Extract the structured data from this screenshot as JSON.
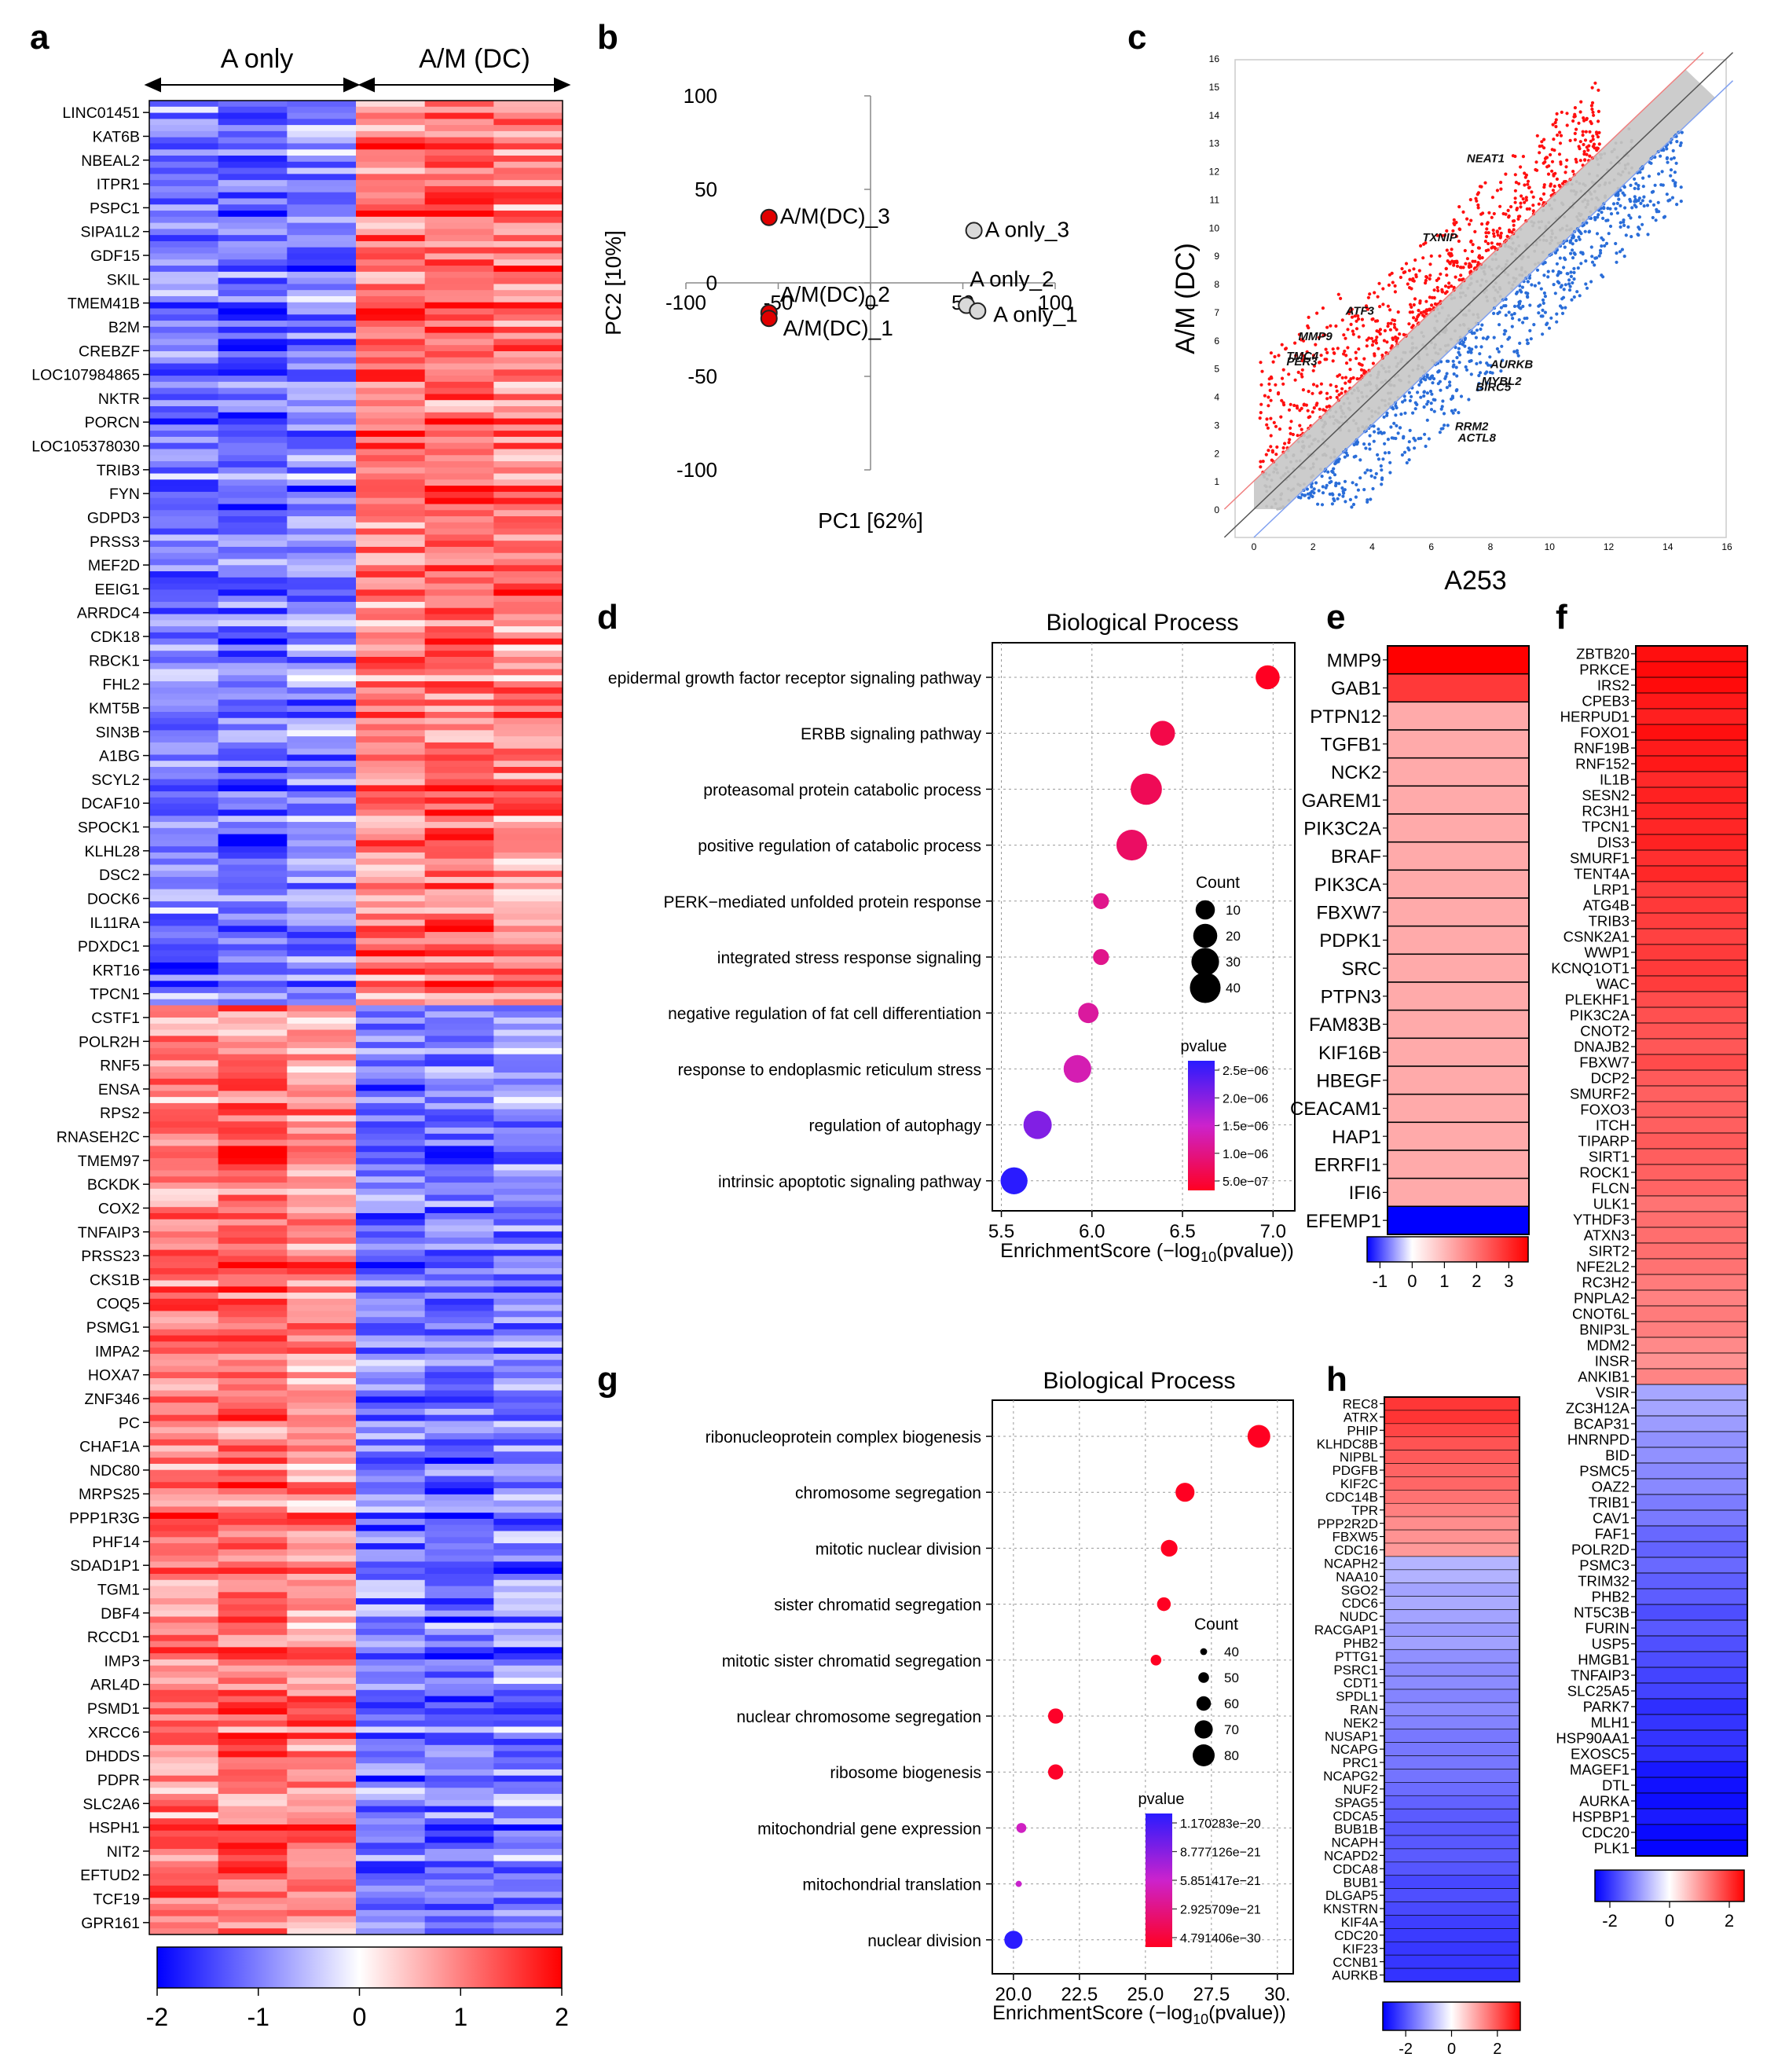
{
  "figure": {
    "panels": [
      "a",
      "b",
      "c",
      "d",
      "e",
      "f",
      "g",
      "h"
    ]
  },
  "chart_data": [
    {
      "panel": "a",
      "type": "heatmap",
      "groups": [
        "A only",
        "A/M (DC)"
      ],
      "genes": [
        "LINC01451",
        "KAT6B",
        "NBEAL2",
        "ITPR1",
        "PSPC1",
        "SIPA1L2",
        "GDF15",
        "SKIL",
        "TMEM41B",
        "B2M",
        "CREBZF",
        "LOC107984865",
        "NKTR",
        "PORCN",
        "LOC105378030",
        "TRIB3",
        "FYN",
        "GDPD3",
        "PRSS3",
        "MEF2D",
        "EEIG1",
        "ARRDC4",
        "CDK18",
        "RBCK1",
        "FHL2",
        "KMT5B",
        "SIN3B",
        "A1BG",
        "SCYL2",
        "DCAF10",
        "SPOCK1",
        "KLHL28",
        "DSC2",
        "DOCK6",
        "IL11RA",
        "PDXDC1",
        "KRT16",
        "TPCN1",
        "CSTF1",
        "POLR2H",
        "RNF5",
        "ENSA",
        "RPS2",
        "RNASEH2C",
        "TMEM97",
        "BCKDK",
        "COX2",
        "TNFAIP3",
        "PRSS23",
        "CKS1B",
        "COQ5",
        "PSMG1",
        "IMPA2",
        "HOXA7",
        "ZNF346",
        "PC",
        "CHAF1A",
        "NDC80",
        "MRPS25",
        "PPP1R3G",
        "PHF14",
        "SDAD1P1",
        "TGM1",
        "DBF4",
        "RCCD1",
        "IMP3",
        "ARL4D",
        "PSMD1",
        "XRCC6",
        "DHDDS",
        "PDPR",
        "SLC2A6",
        "HSPH1",
        "NIT2",
        "EFTUD2",
        "TCF19",
        "GPR161"
      ],
      "up_in_AM_count": 38,
      "colorbar_ticks": [
        "-2",
        "-1",
        "0",
        "1",
        "2"
      ],
      "colorbar_range": [
        -2,
        2
      ]
    },
    {
      "panel": "b",
      "type": "scatter",
      "xlabel": "PC1 [62%]",
      "ylabel": "PC2 [10%]",
      "xlim": [
        -100,
        100
      ],
      "ylim": [
        -100,
        100
      ],
      "xticks": [
        "-100",
        "-50",
        "0",
        "50",
        "100"
      ],
      "yticks": [
        "100",
        "50",
        "0",
        "-50",
        "-100"
      ],
      "points": [
        {
          "label": "A/M(DC)_3",
          "x": -55,
          "y": 35,
          "group": "A/M(DC)"
        },
        {
          "label": "A/M(DC)_2",
          "x": -55,
          "y": -16,
          "group": "A/M(DC)"
        },
        {
          "label": "A/M(DC)_1",
          "x": -55,
          "y": -19,
          "group": "A/M(DC)"
        },
        {
          "label": "A only_3",
          "x": 56,
          "y": 28,
          "group": "A only"
        },
        {
          "label": "A only_2",
          "x": 52,
          "y": -12,
          "group": "A only"
        },
        {
          "label": "A only_1",
          "x": 58,
          "y": -15,
          "group": "A only"
        }
      ]
    },
    {
      "panel": "c",
      "type": "scatter",
      "xlabel": "A253",
      "ylabel": "A/M (DC)",
      "xlim": [
        0,
        16
      ],
      "ylim": [
        0,
        16
      ],
      "xticks": [
        "0",
        "2",
        "4",
        "6",
        "8",
        "10",
        "12",
        "14",
        "16"
      ],
      "yticks": [
        "0",
        "1",
        "2",
        "3",
        "4",
        "5",
        "6",
        "7",
        "8",
        "9",
        "10",
        "11",
        "12",
        "13",
        "14",
        "15",
        "16"
      ],
      "labeled_genes": [
        {
          "gene": "NEAT1",
          "x": 7.2,
          "y": 12.3
        },
        {
          "gene": "TXNIP",
          "x": 5.7,
          "y": 9.5
        },
        {
          "gene": "ATF3",
          "x": 3.1,
          "y": 6.9
        },
        {
          "gene": "MMP9",
          "x": 1.5,
          "y": 6.0
        },
        {
          "gene": "TMC4",
          "x": 1.1,
          "y": 5.3
        },
        {
          "gene": "PER3",
          "x": 1.1,
          "y": 5.1
        },
        {
          "gene": "AURKB",
          "x": 8.0,
          "y": 5.0
        },
        {
          "gene": "MYBL2",
          "x": 7.7,
          "y": 4.4
        },
        {
          "gene": "BIRC5",
          "x": 7.5,
          "y": 4.2
        },
        {
          "gene": "RRM2",
          "x": 6.8,
          "y": 2.8
        },
        {
          "gene": "ACTL8",
          "x": 6.9,
          "y": 2.4
        }
      ]
    },
    {
      "panel": "d",
      "type": "scatter",
      "title": "Biological Process",
      "xlabel": "EnrichmentScore (−log",
      "xlabel_sub": "10",
      "xlabel_end": "(pvalue))",
      "xlim": [
        5.45,
        7.12
      ],
      "xticks": [
        "5.5",
        "6.0",
        "6.5",
        "7.0"
      ],
      "terms": [
        {
          "term": "epidermal growth factor receptor signaling pathway",
          "score": 6.97,
          "count": 20,
          "pvalue": 1e-07
        },
        {
          "term": "ERBB signaling pathway",
          "score": 6.39,
          "count": 22,
          "pvalue": 4e-07
        },
        {
          "term": "proteasomal protein catabolic process",
          "score": 6.3,
          "count": 42,
          "pvalue": 5e-07
        },
        {
          "term": "positive regulation of catabolic process",
          "score": 6.22,
          "count": 40,
          "pvalue": 6e-07
        },
        {
          "term": "PERK−mediated unfolded protein response",
          "score": 6.05,
          "count": 5,
          "pvalue": 9e-07
        },
        {
          "term": "integrated stress response signaling",
          "score": 6.05,
          "count": 5,
          "pvalue": 9e-07
        },
        {
          "term": "negative regulation of fat cell differentiation",
          "score": 5.98,
          "count": 12,
          "pvalue": 1.05e-06
        },
        {
          "term": "response to endoplasmic reticulum stress",
          "score": 5.92,
          "count": 30,
          "pvalue": 1.2e-06
        },
        {
          "term": "regulation of autophagy",
          "score": 5.7,
          "count": 32,
          "pvalue": 2e-06
        },
        {
          "term": "intrinsic apoptotic signaling pathway",
          "score": 5.57,
          "count": 28,
          "pvalue": 2.7e-06
        }
      ],
      "count_legend_title": "Count",
      "count_legend": [
        "10",
        "20",
        "30",
        "40"
      ],
      "pvalue_legend_title": "pvalue",
      "pvalue_legend": [
        "2.5e−06",
        "2.0e−06",
        "1.5e−06",
        "1.0e−06",
        "5.0e−07"
      ]
    },
    {
      "panel": "e",
      "type": "heatmap",
      "genes": [
        "MMP9",
        "GAB1",
        "PTPN12",
        "TGFB1",
        "NCK2",
        "GAREM1",
        "PIK3C2A",
        "BRAF",
        "PIK3CA",
        "FBXW7",
        "PDPK1",
        "SRC",
        "PTPN3",
        "FAM83B",
        "KIF16B",
        "HBEGF",
        "CEACAM1",
        "HAP1",
        "ERRFI1",
        "IFI6",
        "EFEMP1"
      ],
      "values": [
        3.6,
        2.8,
        1.2,
        1.2,
        1.2,
        1.2,
        1.2,
        1.2,
        1.2,
        1.2,
        1.2,
        1.2,
        1.2,
        1.2,
        1.2,
        1.2,
        1.2,
        1.2,
        1.2,
        1.2,
        -1.4
      ],
      "colorbar_ticks": [
        "-1",
        "0",
        "1",
        "2",
        "3"
      ],
      "colorbar_range": [
        -1.4,
        3.6
      ]
    },
    {
      "panel": "f",
      "type": "heatmap",
      "genes": [
        "ZBTB20",
        "PRKCE",
        "IRS2",
        "CPEB3",
        "HERPUD1",
        "FOXO1",
        "RNF19B",
        "RNF152",
        "IL1B",
        "SESN2",
        "RC3H1",
        "TPCN1",
        "DIS3",
        "SMURF1",
        "TENT4A",
        "LRP1",
        "ATG4B",
        "TRIB3",
        "CSNK2A1",
        "WWP1",
        "KCNQ1OT1",
        "WAC",
        "PLEKHF1",
        "PIK3C2A",
        "CNOT2",
        "DNAJB2",
        "FBXW7",
        "DCP2",
        "SMURF2",
        "FOXO3",
        "ITCH",
        "TIPARP",
        "SIRT1",
        "ROCK1",
        "FLCN",
        "ULK1",
        "YTHDF3",
        "ATXN3",
        "SIRT2",
        "NFE2L2",
        "RC3H2",
        "PNPLA2",
        "CNOT6L",
        "BNIP3L",
        "MDM2",
        "INSR",
        "ANKIB1",
        "VSIR",
        "ZC3H12A",
        "BCAP31",
        "HNRNPD",
        "BID",
        "PSMC5",
        "OAZ2",
        "TRIB1",
        "CAV1",
        "FAF1",
        "POLR2D",
        "PSMC3",
        "TRIM32",
        "PHB2",
        "NT5C3B",
        "FURIN",
        "USP5",
        "HMGB1",
        "TNFAIP3",
        "SLC25A5",
        "PARK7",
        "MLH1",
        "HSP90AA1",
        "EXOSC5",
        "MAGEF1",
        "DTL",
        "AURKA",
        "HSPBP1",
        "CDC20",
        "PLK1"
      ],
      "up_count": 47,
      "colorbar_ticks": [
        "-2",
        "0",
        "2"
      ],
      "colorbar_range": [
        -2.5,
        2.5
      ]
    },
    {
      "panel": "g",
      "type": "scatter",
      "title": "Biological Process",
      "xlabel": "EnrichmentScore (−log",
      "xlabel_sub": "10",
      "xlabel_end": "(pvalue))",
      "xlim": [
        19.2,
        30.6
      ],
      "xticks": [
        "20.0",
        "22.5",
        "25.0",
        "27.5",
        "30."
      ],
      "terms": [
        {
          "term": "ribonucleoprotein complex biogenesis",
          "score": 29.3,
          "count": 82,
          "pvalue": 1e-30
        },
        {
          "term": "chromosome segregation",
          "score": 26.5,
          "count": 72,
          "pvalue": 3e-27
        },
        {
          "term": "mitotic nuclear division",
          "score": 25.9,
          "count": 66,
          "pvalue": 1.3e-26
        },
        {
          "term": "sister chromatid segregation",
          "score": 25.7,
          "count": 58,
          "pvalue": 2e-26
        },
        {
          "term": "mitotic sister chromatid segregation",
          "score": 25.4,
          "count": 50,
          "pvalue": 4e-26
        },
        {
          "term": "nuclear chromosome segregation",
          "score": 21.6,
          "count": 62,
          "pvalue": 2.5e-22
        },
        {
          "term": "ribosome biogenesis",
          "score": 21.6,
          "count": 62,
          "pvalue": 2.5e-22
        },
        {
          "term": "mitochondrial gene expression",
          "score": 20.3,
          "count": 48,
          "pvalue": 5.5e-21
        },
        {
          "term": "mitochondrial translation",
          "score": 20.2,
          "count": 38,
          "pvalue": 6e-21
        },
        {
          "term": "nuclear division",
          "score": 20.0,
          "count": 70,
          "pvalue": 1.17e-20
        }
      ],
      "count_legend_title": "Count",
      "count_legend": [
        "40",
        "50",
        "60",
        "70",
        "80"
      ],
      "pvalue_legend_title": "pvalue",
      "pvalue_legend": [
        "1.170283e−20",
        "8.777126e−21",
        "5.851417e−21",
        "2.925709e−21",
        "4.791406e−30"
      ]
    },
    {
      "panel": "h",
      "type": "heatmap",
      "genes": [
        "REC8",
        "ATRX",
        "PHIP",
        "KLHDC8B",
        "NIPBL",
        "PDGFB",
        "KIF2C",
        "CDC14B",
        "TPR",
        "PPP2R2D",
        "FBXW5",
        "CDC16",
        "NCAPH2",
        "NAA10",
        "SGO2",
        "CDC6",
        "NUDC",
        "RACGAP1",
        "PHB2",
        "PTTG1",
        "PSRC1",
        "CDT1",
        "SPDL1",
        "RAN",
        "NEK2",
        "NUSAP1",
        "NCAPG",
        "PRC1",
        "NCAPG2",
        "NUF2",
        "SPAG5",
        "CDCA5",
        "BUB1B",
        "NCAPH",
        "NCAPD2",
        "CDCA8",
        "BUB1",
        "DLGAP5",
        "KNSTRN",
        "KIF4A",
        "CDC20",
        "KIF23",
        "CCNB1",
        "AURKB"
      ],
      "up_count": 12,
      "colorbar_ticks": [
        "-2",
        "0",
        "2"
      ],
      "colorbar_range": [
        -3,
        3
      ]
    }
  ]
}
